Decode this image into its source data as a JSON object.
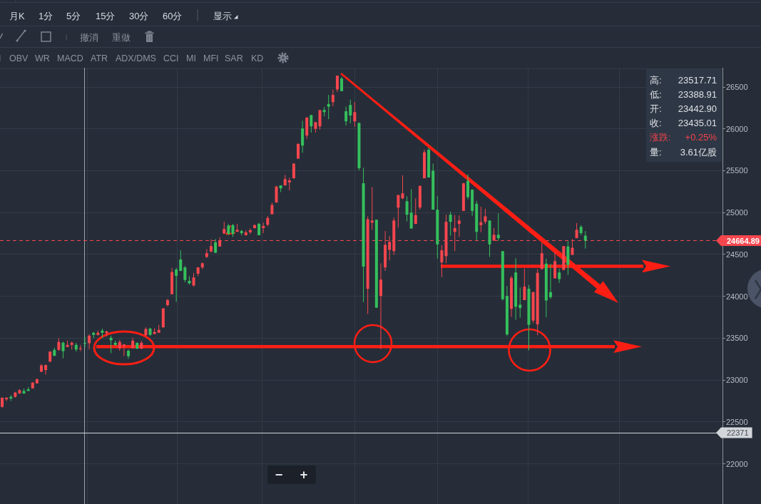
{
  "chart_data": {
    "type": "candlestick",
    "categories": [
      null,
      null,
      null,
      null,
      null,
      null,
      null,
      null,
      null,
      null,
      null,
      null,
      null,
      null,
      null,
      null,
      null,
      null,
      null,
      null,
      null,
      null,
      null,
      null,
      null,
      null,
      null,
      null,
      null,
      null,
      null,
      null,
      null,
      null,
      null,
      null,
      null,
      null,
      null,
      null,
      null,
      null,
      null,
      null,
      null,
      null,
      null,
      null,
      null,
      null,
      null,
      null,
      null,
      null,
      null,
      null,
      null,
      null,
      null,
      null,
      null,
      null,
      null,
      null,
      null,
      null,
      null,
      null,
      null,
      null,
      null,
      null,
      null,
      null,
      null,
      null,
      null,
      null,
      null,
      null,
      null,
      null,
      null,
      null,
      null,
      null,
      null,
      null,
      null,
      null,
      null,
      null,
      null,
      null,
      null,
      null,
      null,
      null,
      null,
      null,
      null,
      null,
      null,
      null,
      null,
      null,
      null,
      null,
      null,
      null,
      null,
      null,
      null,
      null,
      null,
      null,
      null,
      null,
      null,
      null,
      null,
      null,
      null,
      null,
      null,
      null,
      null,
      null,
      null,
      null,
      null,
      null,
      null,
      null,
      null,
      null,
      null,
      null,
      null,
      null,
      null,
      null,
      null,
      null,
      null,
      null,
      null,
      null,
      null,
      null,
      null,
      null,
      null,
      null,
      null,
      null,
      null,
      null,
      null,
      null,
      null,
      null,
      null,
      null,
      null,
      null
    ],
    "ohlc": [
      [
        22680,
        22790,
        22670,
        22790
      ],
      [
        22770,
        22790,
        22750,
        22790
      ],
      [
        22800,
        22820,
        22750,
        22780
      ],
      [
        22800,
        22860,
        22790,
        22850
      ],
      [
        22840,
        22890,
        22835,
        22880
      ],
      [
        22870,
        22900,
        22835,
        22840
      ],
      [
        22890,
        22915,
        22870,
        22870
      ],
      [
        22900,
        22975,
        22900,
        22970
      ],
      [
        22960,
        23020,
        22960,
        23010
      ],
      [
        23100,
        23190,
        23095,
        23175
      ],
      [
        23120,
        23185,
        23065,
        23180
      ],
      [
        23220,
        23345,
        23215,
        23340
      ],
      [
        23360,
        23385,
        23285,
        23290
      ],
      [
        23360,
        23500,
        23350,
        23455
      ],
      [
        23445,
        23460,
        23260,
        23345
      ],
      [
        23395,
        23470,
        23395,
        23420
      ],
      [
        23420,
        23460,
        23365,
        23445
      ],
      [
        23420,
        23445,
        23340,
        23365
      ],
      [
        23370,
        23420,
        23345,
        23380
      ],
      [
        23442.9,
        23517.71,
        23388.91,
        23435.01
      ],
      [
        23440,
        23550,
        23365,
        23530
      ],
      [
        23565,
        23575,
        23500,
        23540
      ],
      [
        23540,
        23590,
        23530,
        23565
      ],
      [
        23590,
        23615,
        23500,
        23565
      ],
      [
        23560,
        23590,
        23520,
        23580
      ],
      [
        23505,
        23530,
        23320,
        23475
      ],
      [
        23445,
        23470,
        23405,
        23420
      ],
      [
        23380,
        23480,
        23350,
        23455
      ],
      [
        23405,
        23430,
        23285,
        23425
      ],
      [
        23350,
        23365,
        23255,
        23285
      ],
      [
        23380,
        23505,
        23380,
        23470
      ],
      [
        23445,
        23450,
        23370,
        23375
      ],
      [
        23375,
        23470,
        23370,
        23445
      ],
      [
        23535,
        23630,
        23530,
        23610
      ],
      [
        23615,
        23625,
        23525,
        23540
      ],
      [
        23550,
        23620,
        23550,
        23575
      ],
      [
        23565,
        23660,
        23565,
        23600
      ],
      [
        23630,
        23860,
        23625,
        23855
      ],
      [
        23895,
        23970,
        23880,
        23955
      ],
      [
        24025,
        24340,
        24025,
        24290
      ],
      [
        24320,
        24340,
        23935,
        24245
      ],
      [
        24440,
        24550,
        24300,
        24305
      ],
      [
        24345,
        24365,
        24170,
        24195
      ],
      [
        24185,
        24240,
        24140,
        24155
      ],
      [
        24130,
        24280,
        24115,
        24225
      ],
      [
        24270,
        24350,
        24240,
        24345
      ],
      [
        24345,
        24405,
        24325,
        24395
      ],
      [
        24470,
        24565,
        24460,
        24515
      ],
      [
        24535,
        24680,
        24525,
        24600
      ],
      [
        24645,
        24685,
        24520,
        24520
      ],
      [
        24595,
        24705,
        24595,
        24670
      ],
      [
        24750,
        24890,
        24745,
        24805
      ],
      [
        24845,
        24865,
        24730,
        24745
      ],
      [
        24850,
        24865,
        24710,
        24745
      ],
      [
        24770,
        24865,
        24770,
        24795
      ],
      [
        24780,
        24795,
        24730,
        24755
      ],
      [
        24730,
        24790,
        24725,
        24765
      ],
      [
        24765,
        24810,
        24745,
        24790
      ],
      [
        24815,
        24860,
        24810,
        24850
      ],
      [
        24865,
        24880,
        24730,
        24730
      ],
      [
        24815,
        24880,
        24755,
        24840
      ],
      [
        24855,
        24960,
        24835,
        24935
      ],
      [
        24980,
        25120,
        24980,
        25090
      ],
      [
        25120,
        25320,
        25120,
        25310
      ],
      [
        25325,
        25325,
        25245,
        25290
      ],
      [
        25325,
        25450,
        25320,
        25400
      ],
      [
        25360,
        25415,
        25265,
        25385
      ],
      [
        25410,
        25590,
        25405,
        25585
      ],
      [
        25645,
        25830,
        25640,
        25820
      ],
      [
        26005,
        26095,
        25715,
        25800
      ],
      [
        25920,
        26140,
        25880,
        26135
      ],
      [
        26165,
        26165,
        25955,
        26030
      ],
      [
        26000,
        26080,
        25955,
        26080
      ],
      [
        26030,
        26225,
        25990,
        26225
      ],
      [
        26225,
        26260,
        26150,
        26200
      ],
      [
        26295,
        26405,
        26115,
        26265
      ],
      [
        26320,
        26470,
        26270,
        26405
      ],
      [
        26470,
        26635,
        26440,
        26635
      ],
      [
        26600,
        26620,
        26450,
        26450
      ],
      [
        26210,
        26265,
        26040,
        26090
      ],
      [
        26285,
        26350,
        26065,
        26160
      ],
      [
        26090,
        26320,
        26025,
        26200
      ],
      [
        26070,
        26075,
        25505,
        25530
      ],
      [
        25350,
        25535,
        23930,
        24355
      ],
      [
        24090,
        24955,
        23790,
        24920
      ],
      [
        24880,
        25305,
        24795,
        24905
      ],
      [
        24915,
        24915,
        23860,
        23865
      ],
      [
        24005,
        24395,
        23370,
        24200
      ],
      [
        24345,
        24780,
        24305,
        24615
      ],
      [
        24555,
        24720,
        24430,
        24650
      ],
      [
        24540,
        24940,
        24495,
        24905
      ],
      [
        25060,
        25210,
        24820,
        25210
      ],
      [
        25170,
        25445,
        25160,
        25230
      ],
      [
        25135,
        25195,
        24895,
        24975
      ],
      [
        25000,
        25280,
        24810,
        24810
      ],
      [
        24865,
        25170,
        24865,
        24970
      ],
      [
        25060,
        25320,
        25035,
        25320
      ],
      [
        25410,
        25750,
        25410,
        25720
      ],
      [
        25750,
        25775,
        25420,
        25420
      ],
      [
        25500,
        25585,
        25035,
        25035
      ],
      [
        25035,
        25195,
        24450,
        24620
      ],
      [
        24405,
        24610,
        24230,
        24550
      ],
      [
        24480,
        24975,
        24395,
        24890
      ],
      [
        24975,
        25010,
        24725,
        24890
      ],
      [
        24770,
        24970,
        24540,
        24815
      ],
      [
        24865,
        24965,
        24710,
        24905
      ],
      [
        25020,
        25355,
        25020,
        25350
      ],
      [
        25380,
        25455,
        25160,
        25185
      ],
      [
        25275,
        25275,
        24960,
        25020
      ],
      [
        25105,
        25140,
        24670,
        24770
      ],
      [
        24850,
        25070,
        24765,
        24885
      ],
      [
        24890,
        25045,
        24865,
        24955
      ],
      [
        24905,
        24905,
        24470,
        24620
      ],
      [
        24665,
        24815,
        24665,
        24735
      ],
      [
        24735,
        24990,
        24665,
        24695
      ],
      [
        24540,
        24540,
        23950,
        23965
      ],
      [
        24005,
        24125,
        23525,
        23545
      ],
      [
        23850,
        24245,
        23755,
        24220
      ],
      [
        24285,
        24455,
        23720,
        23875
      ],
      [
        23900,
        24105,
        23745,
        23860
      ],
      [
        23955,
        24330,
        23955,
        24115
      ],
      [
        24090,
        24135,
        23355,
        23660
      ],
      [
        23710,
        24055,
        23680,
        24050
      ],
      [
        23665,
        24325,
        23535,
        24280
      ],
      [
        24325,
        24640,
        24325,
        24515
      ],
      [
        24390,
        24450,
        23750,
        23950
      ],
      [
        24050,
        24390,
        23970,
        23990
      ],
      [
        24215,
        24530,
        24215,
        24420
      ],
      [
        24285,
        24330,
        24160,
        24205
      ],
      [
        24315,
        24600,
        24315,
        24600
      ],
      [
        24595,
        24660,
        24255,
        24375
      ],
      [
        24495,
        24685,
        24495,
        24580
      ],
      [
        24695,
        24875,
        24695,
        24795
      ],
      [
        24830,
        24850,
        24730,
        24755
      ],
      [
        24725,
        24780,
        24570,
        24664.89
      ],
      null,
      null,
      null,
      null,
      null,
      null,
      null,
      null,
      null,
      null,
      null,
      null,
      null,
      null,
      null,
      null,
      null,
      null,
      null,
      null,
      null,
      null,
      null,
      null,
      null,
      null,
      null,
      null,
      null,
      null,
      null
    ],
    "colors": [
      "#f5464e",
      "#f5464e",
      "#35bf5c",
      "#f5464e",
      "#f5464e",
      "#35bf5c",
      "#35bf5c",
      "#f5464e",
      "#f5464e",
      "#f5464e",
      "#f5464e",
      "#f5464e",
      "#35bf5c",
      "#f5464e",
      "#35bf5c",
      "#f5464e",
      "#f5464e",
      "#35bf5c",
      "#f5464e",
      "#35bf5c",
      "#f5464e",
      "#35bf5c",
      "#f5464e",
      "#35bf5c",
      "#f5464e",
      "#35bf5c",
      "#35bf5c",
      "#f5464e",
      "#f5464e",
      "#35bf5c",
      "#f5464e",
      "#35bf5c",
      "#f5464e",
      "#f5464e",
      "#35bf5c",
      "#f5464e",
      "#f5464e",
      "#f5464e",
      "#f5464e",
      "#f5464e",
      "#35bf5c",
      "#35bf5c",
      "#35bf5c",
      "#35bf5c",
      "#f5464e",
      "#f5464e",
      "#f5464e",
      "#f5464e",
      "#f5464e",
      "#35bf5c",
      "#f5464e",
      "#f5464e",
      "#35bf5c",
      "#35bf5c",
      "#f5464e",
      "#35bf5c",
      "#f5464e",
      "#f5464e",
      "#f5464e",
      "#35bf5c",
      "#f5464e",
      "#f5464e",
      "#f5464e",
      "#f5464e",
      "#35bf5c",
      "#f5464e",
      "#f5464e",
      "#f5464e",
      "#f5464e",
      "#35bf5c",
      "#f5464e",
      "#35bf5c",
      "#f5464e",
      "#f5464e",
      "#35bf5c",
      "#35bf5c",
      "#f5464e",
      "#f5464e",
      "#35bf5c",
      "#35bf5c",
      "#35bf5c",
      "#f5464e",
      "#35bf5c",
      "#35bf5c",
      "#f5464e",
      "#f5464e",
      "#35bf5c",
      "#f5464e",
      "#f5464e",
      "#f5464e",
      "#f5464e",
      "#f5464e",
      "#f5464e",
      "#35bf5c",
      "#35bf5c",
      "#f5464e",
      "#f5464e",
      "#f5464e",
      "#35bf5c",
      "#35bf5c",
      "#35bf5c",
      "#f5464e",
      "#f5464e",
      "#35bf5c",
      "#f5464e",
      "#f5464e",
      "#f5464e",
      "#35bf5c",
      "#35bf5c",
      "#35bf5c",
      "#f5464e",
      "#f5464e",
      "#35bf5c",
      "#f5464e",
      "#35bf5c",
      "#35bf5c",
      "#35bf5c",
      "#f5464e",
      "#35bf5c",
      "#35bf5c",
      "#f5464e",
      "#35bf5c",
      "#f5464e",
      "#f5464e",
      "#f5464e",
      "#35bf5c",
      "#35bf5c",
      "#f5464e",
      "#35bf5c",
      "#f5464e",
      "#35bf5c",
      "#f5464e",
      "#f5464e",
      "#35bf5c",
      "#35bf5c",
      null,
      null,
      null,
      null,
      null,
      null,
      null,
      null,
      null,
      null,
      null,
      null,
      null,
      null,
      null,
      null,
      null,
      null,
      null,
      null,
      null,
      null,
      null,
      null,
      null,
      null,
      null,
      null,
      null,
      null,
      null
    ],
    "ylim": [
      21520,
      26730
    ],
    "yticks": [
      22000,
      22500,
      23000,
      23500,
      24000,
      24500,
      25000,
      25500,
      26000,
      26500
    ],
    "grid": true,
    "ref_lines": [
      {
        "axis": "y",
        "value": 24664.89,
        "label": "24664.89",
        "color": "#f5464e",
        "line_style": "dashed"
      },
      {
        "axis": "y",
        "value": 22371,
        "label": "22371",
        "color": "#d2d5da"
      },
      {
        "axis": "y",
        "value": 23400,
        "color": "#ff1e14"
      },
      {
        "axis": "y",
        "value": 24360,
        "color": "#ff1e14"
      }
    ],
    "annotations": [
      "月K",
      "1分",
      "5分",
      "15分",
      "30分",
      "60分",
      "显示",
      "撤消",
      "重做",
      "I",
      "OBV",
      "WR",
      "MACD",
      "ATR",
      "ADX/DMS",
      "CCI",
      "MI",
      "MFI",
      "SAR",
      "KD",
      "高:",
      "23517.71",
      "低:",
      "23388.91",
      "开:",
      "23442.90",
      "收:",
      "23435.01",
      "涨跌:",
      "+0.25%",
      "量:",
      "3.61亿股",
      "−",
      "+"
    ]
  }
}
